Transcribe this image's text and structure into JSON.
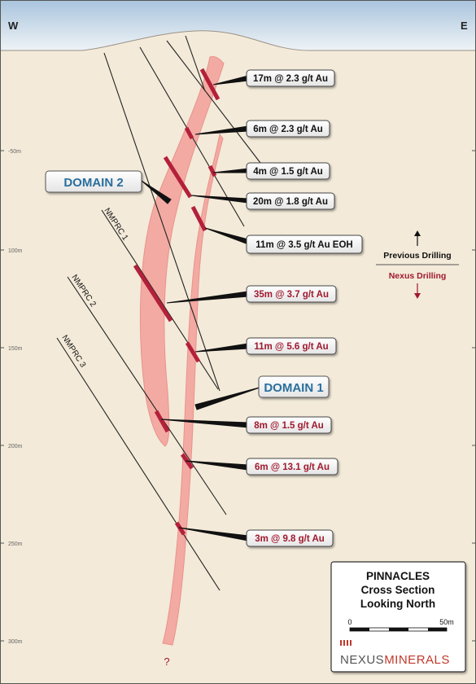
{
  "compass": {
    "west": "W",
    "east": "E"
  },
  "depth_labels": [
    "-50m",
    "100m",
    "150m",
    "200m",
    "250m",
    "300m"
  ],
  "domains": {
    "domain_2": "DOMAIN 2",
    "domain_1": "DOMAIN 1"
  },
  "drill_holes": [
    "NMPRC 1",
    "NMPRC 2",
    "NMPRC 3"
  ],
  "intercepts_previous": [
    "17m @ 2.3 g/t Au",
    "6m @ 2.3 g/t Au",
    "4m @ 1.5 g/t Au",
    "20m @ 1.8 g/t Au",
    "11m @ 3.5 g/t Au EOH"
  ],
  "intercepts_nexus": [
    "35m @ 3.7 g/t Au",
    "11m @ 5.6 g/t Au",
    "8m @ 1.5 g/t Au",
    "6m @ 13.1 g/t Au",
    "3m @ 9.8 g/t Au"
  ],
  "drilling_legend": {
    "previous": "Previous Drilling",
    "nexus": "Nexus Drilling"
  },
  "unknown_marker": "?",
  "title_box": {
    "line1": "PINNACLES",
    "line2": "Cross Section",
    "line3": "Looking North",
    "scale_start": "0",
    "scale_end": "50m",
    "logo_part1": "NEXUS",
    "logo_part2": "MINERALS"
  },
  "colors": {
    "sky_top": "#a9c4dd",
    "ground": "#f3ead9",
    "ore_body": "#f4a7a0",
    "intercept": "#b3203a",
    "previous_text": "#111111",
    "nexus_text": "#a0192e",
    "domain_text": "#2a6f9e"
  }
}
